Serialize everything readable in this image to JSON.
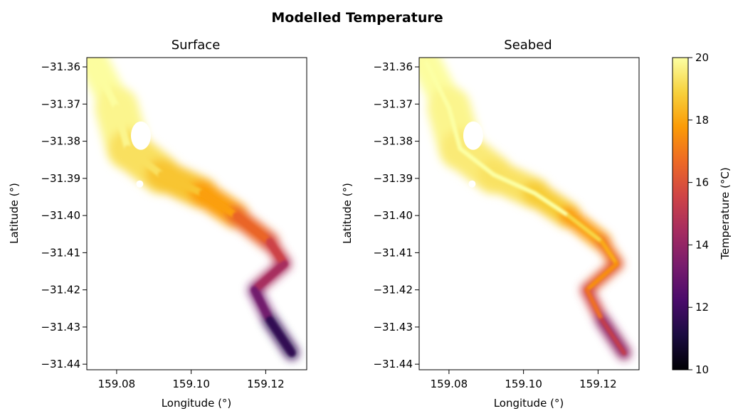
{
  "chart_data": {
    "type": "heatmap",
    "title": "Modelled Temperature",
    "colorbar": {
      "label": "Temperature (°C)",
      "range": [
        10,
        20
      ],
      "ticks": [
        "10",
        "12",
        "14",
        "16",
        "18",
        "20"
      ],
      "colormap": "inferno",
      "stops": [
        "#000004",
        "#1b0c41",
        "#4a0c6b",
        "#781c6d",
        "#a52c60",
        "#cf4446",
        "#ed6925",
        "#fb9b06",
        "#f7d13d",
        "#fcffa4"
      ]
    },
    "panels": [
      {
        "title": "Surface",
        "xlabel": "Longitude (°)",
        "ylabel": "Latitude (°)",
        "xlim": [
          159.072,
          159.131
        ],
        "ylim": [
          -31.4415,
          -31.3575
        ],
        "xticks": [
          "159.08",
          "159.10",
          "159.12"
        ],
        "yticks": [
          "−31.36",
          "−31.37",
          "−31.38",
          "−31.39",
          "−31.40",
          "−31.41",
          "−31.42",
          "−31.43",
          "−31.44"
        ],
        "temperature_along_channel": [
          {
            "lon": 159.074,
            "lat": -31.359,
            "temp": 20.0
          },
          {
            "lon": 159.08,
            "lat": -31.371,
            "temp": 19.9
          },
          {
            "lon": 159.083,
            "lat": -31.382,
            "temp": 19.6
          },
          {
            "lon": 159.092,
            "lat": -31.389,
            "temp": 18.9
          },
          {
            "lon": 159.103,
            "lat": -31.394,
            "temp": 18.4
          },
          {
            "lon": 159.112,
            "lat": -31.4,
            "temp": 17.3
          },
          {
            "lon": 159.121,
            "lat": -31.407,
            "temp": 15.8
          },
          {
            "lon": 159.125,
            "lat": -31.413,
            "temp": 15.2
          },
          {
            "lon": 159.117,
            "lat": -31.42,
            "temp": 13.8
          },
          {
            "lon": 159.121,
            "lat": -31.428,
            "temp": 12.6
          },
          {
            "lon": 159.127,
            "lat": -31.437,
            "temp": 10.6
          }
        ]
      },
      {
        "title": "Seabed",
        "xlabel": "Longitude (°)",
        "ylabel": "Latitude (°)",
        "xlim": [
          159.072,
          159.131
        ],
        "ylim": [
          -31.4415,
          -31.3575
        ],
        "xticks": [
          "159.08",
          "159.10",
          "159.12"
        ],
        "yticks": [
          "−31.36",
          "−31.37",
          "−31.38",
          "−31.39",
          "−31.40",
          "−31.41",
          "−31.42",
          "−31.43",
          "−31.44"
        ],
        "temperature_along_channel": [
          {
            "lon": 159.074,
            "lat": -31.359,
            "temp": 20.0
          },
          {
            "lon": 159.08,
            "lat": -31.371,
            "temp": 19.9
          },
          {
            "lon": 159.083,
            "lat": -31.382,
            "temp": 19.6
          },
          {
            "lon": 159.092,
            "lat": -31.389,
            "temp": 19.4
          },
          {
            "lon": 159.103,
            "lat": -31.394,
            "temp": 19.2
          },
          {
            "lon": 159.112,
            "lat": -31.4,
            "temp": 18.4
          },
          {
            "lon": 159.121,
            "lat": -31.407,
            "temp": 17.2
          },
          {
            "lon": 159.125,
            "lat": -31.413,
            "temp": 16.6
          },
          {
            "lon": 159.117,
            "lat": -31.42,
            "temp": 16.0
          },
          {
            "lon": 159.121,
            "lat": -31.428,
            "temp": 15.2
          },
          {
            "lon": 159.127,
            "lat": -31.437,
            "temp": 12.8
          }
        ]
      }
    ]
  }
}
